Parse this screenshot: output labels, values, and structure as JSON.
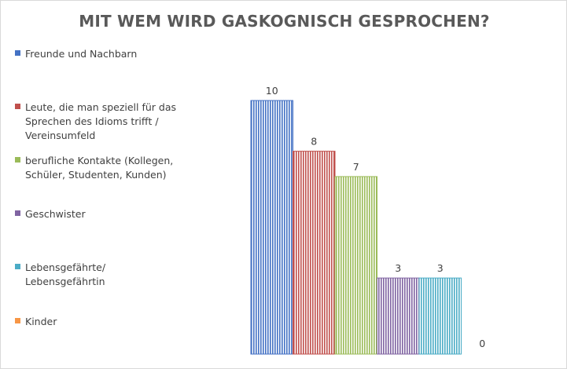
{
  "chart_data": {
    "type": "bar",
    "title": "MIT WEM WIRD GASKOGNISCH GESPROCHEN?",
    "legend_position": "left",
    "grid": false,
    "ylim": [
      0,
      10
    ],
    "series": [
      {
        "name": "Freunde und Nachbarn",
        "value": 10,
        "label": "10",
        "color": "#4472c4"
      },
      {
        "name": "Leute, die man speziell für das\nSprechen des Idioms trifft /\nVereinsumfeld",
        "value": 8,
        "label": "8",
        "color": "#c0504d"
      },
      {
        "name": "berufliche Kontakte (Kollegen,\nSchüler, Studenten, Kunden)",
        "value": 7,
        "label": "7",
        "color": "#9bbb59"
      },
      {
        "name": "Geschwister",
        "value": 3,
        "label": "3",
        "color": "#8064a2"
      },
      {
        "name": "Lebensgefährte/\nLebensgefährtin",
        "value": 3,
        "label": "3",
        "color": "#4bacc6"
      },
      {
        "name": "Kinder",
        "value": 0,
        "label": "0",
        "color": "#f79646"
      }
    ]
  }
}
